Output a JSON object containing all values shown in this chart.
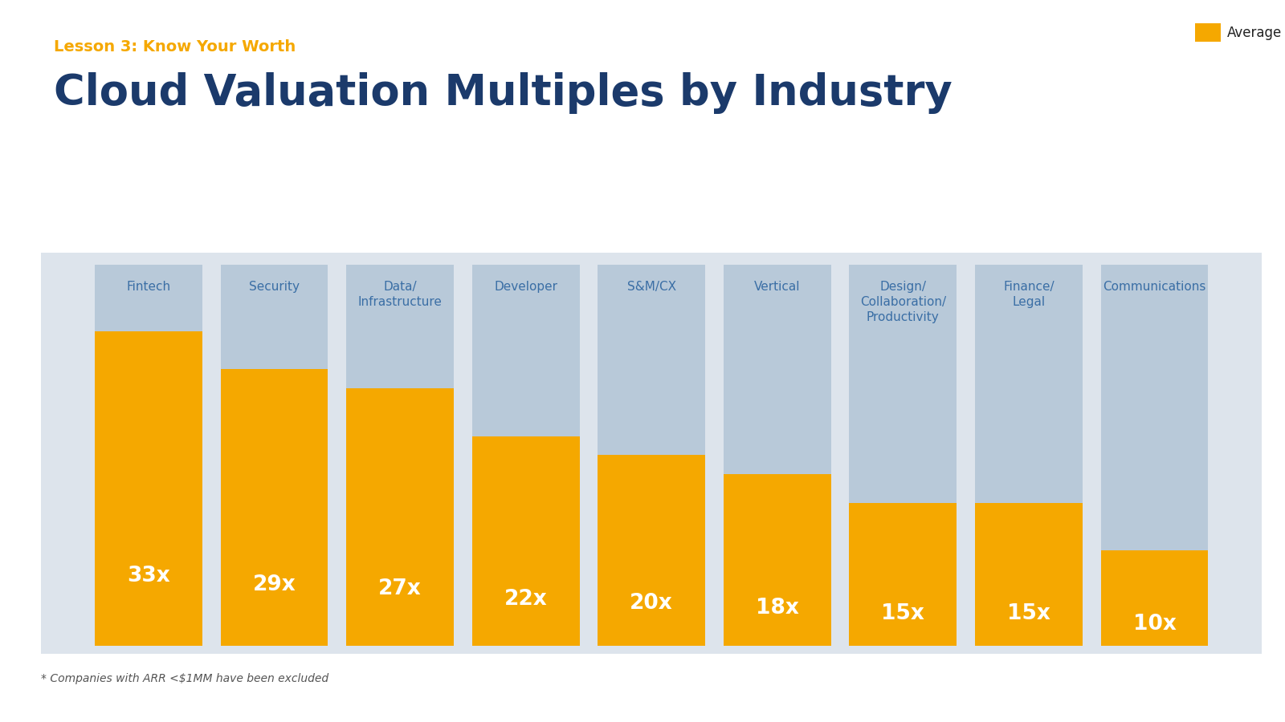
{
  "subtitle": "Lesson 3: Know Your Worth",
  "title": "Cloud Valuation Multiples by Industry",
  "subtitle_color": "#F5A800",
  "title_color": "#1B3A6B",
  "background_color": "#FFFFFF",
  "chart_bg_color": "#DDE4EC",
  "bar_bg_color": "#B8C9D9",
  "bar_fg_color": "#F5A800",
  "categories": [
    "Fintech",
    "Security",
    "Data/\nInfrastructure",
    "Developer",
    "S&M/CX",
    "Vertical",
    "Design/\nCollaboration/\nProductivity",
    "Finance/\nLegal",
    "Communications"
  ],
  "values": [
    33,
    29,
    27,
    22,
    20,
    18,
    15,
    15,
    10
  ],
  "max_value": 40,
  "labels": [
    "33x",
    "29x",
    "27x",
    "22x",
    "20x",
    "18x",
    "15x",
    "15x",
    "10x"
  ],
  "footnote": "* Companies with ARR <$1MM have been excluded",
  "legend_label": "Average",
  "legend_color": "#F5A800",
  "subtitle_fontsize": 14,
  "title_fontsize": 38,
  "label_fontsize": 19,
  "category_fontsize": 11,
  "footnote_fontsize": 10
}
